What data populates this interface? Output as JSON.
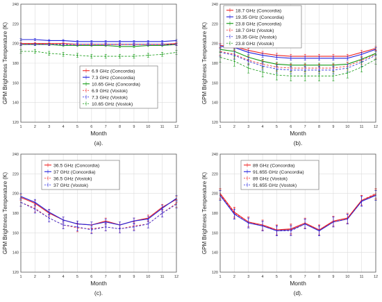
{
  "chart_data": [
    {
      "type": "line",
      "caption": "(a).",
      "xlabel": "Month",
      "ylabel": "GPM Brightness Temperature (K)",
      "xlim": [
        1,
        12
      ],
      "ylim": [
        120,
        240
      ],
      "grid": true,
      "legend_position": "bottom-right",
      "x": [
        1,
        2,
        3,
        4,
        5,
        6,
        7,
        8,
        9,
        10,
        11,
        12
      ],
      "series": [
        {
          "name": "6.9 GHz (Concordia)",
          "color": "#ee2222",
          "dashed": false,
          "values": [
            200,
            200,
            200,
            200,
            199,
            199,
            199,
            199,
            199,
            199,
            199,
            200
          ],
          "err": [
            1,
            1,
            1,
            1,
            1,
            1,
            1,
            1,
            1,
            1,
            1,
            1
          ]
        },
        {
          "name": "7.3 GHz (Concordia)",
          "color": "#2222dd",
          "dashed": false,
          "values": [
            204,
            204,
            203,
            203,
            202,
            202,
            202,
            202,
            202,
            202,
            202,
            203
          ],
          "err": [
            1,
            1,
            1,
            1,
            1,
            1,
            1,
            1,
            1,
            1,
            1,
            1
          ]
        },
        {
          "name": "10.65 GHz (Concordia)",
          "color": "#119911",
          "dashed": false,
          "values": [
            199,
            199,
            199,
            198,
            198,
            198,
            198,
            197,
            197,
            198,
            198,
            199
          ],
          "err": [
            1,
            1,
            1,
            1,
            1,
            1,
            1,
            1,
            1,
            1,
            1,
            1
          ]
        },
        {
          "name": "6.9 GHz (Vostok)",
          "color": "#ee2222",
          "dashed": true,
          "values": [
            199,
            200,
            199,
            199,
            199,
            199,
            199,
            199,
            199,
            199,
            199,
            199
          ],
          "err": [
            1,
            1,
            1,
            1,
            1,
            1,
            1,
            1,
            1,
            1,
            1,
            1
          ]
        },
        {
          "name": "7.3 GHz (Vostok)",
          "color": "#2222dd",
          "dashed": true,
          "values": [
            199,
            199,
            199,
            199,
            199,
            199,
            199,
            199,
            199,
            199,
            199,
            199
          ],
          "err": [
            1,
            1,
            1,
            1,
            1,
            1,
            1,
            1,
            1,
            1,
            1,
            1
          ]
        },
        {
          "name": "10.65 GHz (Vostok)",
          "color": "#119911",
          "dashed": true,
          "values": [
            192,
            192,
            190,
            189,
            188,
            187,
            187,
            187,
            187,
            188,
            189,
            191
          ],
          "err": [
            2,
            2,
            2,
            2,
            2,
            2,
            2,
            2,
            2,
            2,
            2,
            2
          ]
        }
      ]
    },
    {
      "type": "line",
      "caption": "(b).",
      "xlabel": "Month",
      "ylabel": "GPM Brightness Temperature (K)",
      "xlim": [
        1,
        12
      ],
      "ylim": [
        120,
        240
      ],
      "grid": true,
      "legend_position": "top-left",
      "x": [
        1,
        2,
        3,
        4,
        5,
        6,
        7,
        8,
        9,
        10,
        11,
        12
      ],
      "series": [
        {
          "name": "18.7 GHz (Concordia)",
          "color": "#ee2222",
          "dashed": false,
          "values": [
            198,
            197,
            193,
            190,
            188,
            187,
            187,
            187,
            187,
            187,
            191,
            195
          ],
          "err": [
            2,
            2,
            2,
            2,
            2,
            2,
            2,
            2,
            2,
            2,
            2,
            2
          ]
        },
        {
          "name": "19.35 GHz (Concordia)",
          "color": "#2222dd",
          "dashed": false,
          "values": [
            197,
            196,
            191,
            188,
            186,
            185,
            185,
            185,
            185,
            185,
            189,
            194
          ],
          "err": [
            2,
            2,
            2,
            2,
            2,
            2,
            2,
            2,
            2,
            2,
            2,
            2
          ]
        },
        {
          "name": "23.8 GHz (Concordia)",
          "color": "#119911",
          "dashed": false,
          "values": [
            194,
            192,
            186,
            182,
            179,
            178,
            178,
            178,
            178,
            179,
            184,
            190
          ],
          "err": [
            2,
            2,
            2,
            2,
            2,
            2,
            2,
            2,
            2,
            2,
            2,
            2
          ]
        },
        {
          "name": "18.7 GHz (Vostok)",
          "color": "#ee2222",
          "dashed": true,
          "values": [
            192,
            189,
            183,
            179,
            176,
            175,
            175,
            175,
            175,
            177,
            183,
            189
          ],
          "err": [
            4,
            4,
            4,
            4,
            4,
            4,
            4,
            4,
            4,
            4,
            4,
            4
          ]
        },
        {
          "name": "19.35 GHz (Vostok)",
          "color": "#2222dd",
          "dashed": true,
          "values": [
            191,
            188,
            182,
            177,
            174,
            173,
            173,
            173,
            173,
            175,
            181,
            188
          ],
          "err": [
            4,
            4,
            4,
            4,
            4,
            4,
            4,
            4,
            4,
            4,
            4,
            4
          ]
        },
        {
          "name": "23.8 GHz (Vostok)",
          "color": "#119911",
          "dashed": true,
          "values": [
            186,
            182,
            175,
            171,
            168,
            167,
            167,
            167,
            167,
            170,
            176,
            184
          ],
          "err": [
            5,
            5,
            5,
            5,
            5,
            5,
            5,
            5,
            5,
            5,
            5,
            5
          ]
        }
      ]
    },
    {
      "type": "line",
      "caption": "(c).",
      "xlabel": "Month",
      "ylabel": "GPM Brightness Temperature (K)",
      "xlim": [
        1,
        12
      ],
      "ylim": [
        120,
        240
      ],
      "grid": true,
      "legend_position": "top-center",
      "x": [
        1,
        2,
        3,
        4,
        5,
        6,
        7,
        8,
        9,
        10,
        11,
        12
      ],
      "series": [
        {
          "name": "36.5 GHz (Concordia)",
          "color": "#ee2222",
          "dashed": false,
          "values": [
            196,
            190,
            180,
            173,
            169,
            168,
            172,
            168,
            172,
            175,
            186,
            194
          ],
          "err": [
            3,
            3,
            3,
            3,
            3,
            3,
            3,
            3,
            3,
            3,
            3,
            3
          ]
        },
        {
          "name": "37 GHz (Concordia)",
          "color": "#2222dd",
          "dashed": false,
          "values": [
            197,
            191,
            181,
            173,
            169,
            168,
            171,
            168,
            172,
            174,
            185,
            195
          ],
          "err": [
            3,
            3,
            3,
            3,
            3,
            3,
            3,
            3,
            3,
            3,
            3,
            3
          ]
        },
        {
          "name": "36.5 GHz (Vostok)",
          "color": "#ee2222",
          "dashed": true,
          "values": [
            191,
            185,
            175,
            168,
            165,
            164,
            166,
            164,
            167,
            169,
            180,
            190
          ],
          "err": [
            4,
            4,
            4,
            4,
            4,
            4,
            4,
            4,
            4,
            4,
            4,
            4
          ]
        },
        {
          "name": "37 GHz (Vostok)",
          "color": "#2222dd",
          "dashed": true,
          "values": [
            191,
            184,
            175,
            168,
            166,
            163,
            166,
            164,
            166,
            169,
            180,
            189
          ],
          "err": [
            4,
            4,
            4,
            4,
            4,
            4,
            4,
            4,
            4,
            4,
            4,
            4
          ]
        }
      ]
    },
    {
      "type": "line",
      "caption": "(d).",
      "xlabel": "Month",
      "ylabel": "GPM Brightness Temperature (K)",
      "xlim": [
        1,
        12
      ],
      "ylim": [
        120,
        240
      ],
      "grid": true,
      "legend_position": "top-center",
      "x": [
        1,
        2,
        3,
        4,
        5,
        6,
        7,
        8,
        9,
        10,
        11,
        12
      ],
      "series": [
        {
          "name": "89 GHz (Concordia)",
          "color": "#ee2222",
          "dashed": false,
          "values": [
            200,
            181,
            171,
            168,
            163,
            164,
            170,
            163,
            172,
            175,
            193,
            199
          ],
          "err": [
            5,
            5,
            5,
            5,
            5,
            5,
            5,
            5,
            5,
            5,
            5,
            5
          ]
        },
        {
          "name": "91.655 GHz (Concordia)",
          "color": "#2222dd",
          "dashed": false,
          "values": [
            198,
            179,
            170,
            167,
            162,
            163,
            169,
            162,
            171,
            174,
            192,
            198
          ],
          "err": [
            5,
            5,
            5,
            5,
            5,
            5,
            5,
            5,
            5,
            5,
            5,
            5
          ]
        },
        {
          "name": "89 GHz (Vostok)",
          "color": "#ee2222",
          "dashed": true,
          "values": [
            199,
            180,
            171,
            167,
            163,
            163,
            169,
            163,
            171,
            174,
            193,
            200
          ],
          "err": [
            5,
            5,
            5,
            5,
            5,
            5,
            5,
            5,
            5,
            5,
            5,
            5
          ]
        },
        {
          "name": "91.655 GHz (Vostok)",
          "color": "#2222dd",
          "dashed": true,
          "values": [
            198,
            179,
            170,
            167,
            162,
            162,
            169,
            162,
            171,
            174,
            192,
            198
          ],
          "err": [
            5,
            5,
            5,
            5,
            5,
            5,
            5,
            5,
            5,
            5,
            5,
            5
          ]
        }
      ]
    }
  ]
}
